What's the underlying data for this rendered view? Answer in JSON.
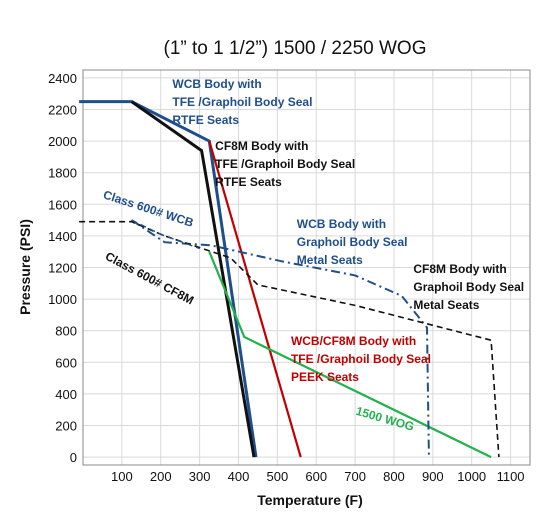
{
  "chart_data": {
    "type": "line",
    "title": "(1” to 1 1/2”) 1500 / 2250 WOG",
    "xlabel": "Temperature (F)",
    "ylabel": "Pressure (PSI)",
    "xlim": [
      0,
      1150
    ],
    "ylim": [
      -50,
      2450
    ],
    "xticks": [
      100,
      200,
      300,
      400,
      500,
      600,
      700,
      800,
      900,
      1000,
      1100
    ],
    "yticks": [
      0,
      200,
      400,
      600,
      800,
      1000,
      1200,
      1400,
      1600,
      1800,
      2000,
      2200,
      2400
    ],
    "grid": true,
    "series": [
      {
        "id": "wcb-tfe-rtfe",
        "color": "#1f4e8c",
        "style": "solid",
        "width": 3,
        "points": [
          [
            -10,
            2250
          ],
          [
            125,
            2250
          ],
          [
            325,
            2000
          ],
          [
            445,
            0
          ]
        ]
      },
      {
        "id": "cf8m-tfe-rtfe",
        "color": "#111111",
        "style": "solid",
        "width": 3,
        "points": [
          [
            125,
            2250
          ],
          [
            305,
            1940
          ],
          [
            440,
            0
          ]
        ]
      },
      {
        "id": "wcb-cf8m-peek",
        "color": "#c00000",
        "style": "solid",
        "width": 2.2,
        "points": [
          [
            325,
            2000
          ],
          [
            560,
            0
          ]
        ]
      },
      {
        "id": "wog-1500",
        "color": "#22b14c",
        "style": "solid",
        "width": 2.2,
        "points": [
          [
            325,
            1300
          ],
          [
            415,
            760
          ],
          [
            1050,
            0
          ]
        ]
      },
      {
        "id": "wcb-metal",
        "color": "#1f4e8c",
        "style": "dashdot",
        "width": 2,
        "points": [
          [
            125,
            1500
          ],
          [
            210,
            1360
          ],
          [
            330,
            1340
          ],
          [
            510,
            1240
          ],
          [
            700,
            1150
          ],
          [
            820,
            1020
          ],
          [
            885,
            820
          ],
          [
            890,
            0
          ]
        ]
      },
      {
        "id": "cf8m-metal",
        "color": "#111111",
        "style": "dashed",
        "width": 1.6,
        "points": [
          [
            -10,
            1490
          ],
          [
            125,
            1490
          ],
          [
            210,
            1400
          ],
          [
            380,
            1260
          ],
          [
            450,
            1090
          ],
          [
            700,
            960
          ],
          [
            1050,
            740
          ],
          [
            1070,
            0
          ]
        ]
      },
      {
        "id": "class600-wcb",
        "color": "#1f4e8c",
        "style": "dashed",
        "width": 1.4,
        "points": [
          [
            125,
            1500
          ],
          [
            200,
            1410
          ],
          [
            300,
            1320
          ]
        ]
      }
    ],
    "annotations": [
      {
        "lines": [
          "WCB Body  with",
          "TFE /Graphoil Body Seal",
          "RTFE Seats"
        ],
        "color": "#1f4e8c",
        "x": 230,
        "y": 2335
      },
      {
        "lines": [
          "CF8M Body  with",
          "TFE /Graphoil Body Seal",
          "RTFE Seats"
        ],
        "color": "#111111",
        "x": 340,
        "y": 1945
      },
      {
        "lines": [
          "WCB Body  with",
          "Graphoil Body Seal",
          "Metal Seats"
        ],
        "color": "#1f4e8c",
        "x": 550,
        "y": 1450
      },
      {
        "lines": [
          "CF8M  Body with",
          "Graphoil Body Seal",
          "Metal Seats"
        ],
        "color": "#111111",
        "x": 850,
        "y": 1165
      },
      {
        "lines": [
          "WCB/CF8M Body  with",
          "TFE /Graphoil Body Seal",
          "PEEK Seats"
        ],
        "color": "#c00000",
        "x": 535,
        "y": 710
      },
      {
        "lines": [
          "1500 WOG"
        ],
        "color": "#22b14c",
        "x": 700,
        "y": 270,
        "rotate": 16
      },
      {
        "lines": [
          "Class 600# WCB"
        ],
        "color": "#1f4e8c",
        "x": 50,
        "y": 1640,
        "rotate": 18
      },
      {
        "lines": [
          "Class 600# CF8M"
        ],
        "color": "#111111",
        "x": 55,
        "y": 1255,
        "rotate": 28
      }
    ]
  }
}
